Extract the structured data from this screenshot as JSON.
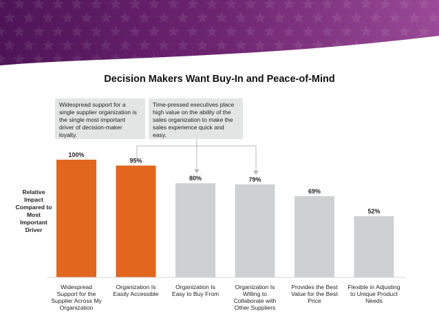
{
  "title": "Decision Makers Want Buy-In and Peace-of-Mind",
  "callouts": [
    "Widespread support for a single supplier organization is the single most important driver of decision-maker loyalty.",
    "Time-pressed executives place high value on the ability of the sales organization to make the sales experience quick and easy."
  ],
  "y_axis_label": "Relative Impact Compared to Most Important Driver",
  "colors": {
    "highlight": "#e2661e",
    "neutral": "#cfd0d1",
    "banner_dark": "#58185f",
    "banner_light": "#8c3b8c"
  },
  "chart_data": {
    "type": "bar",
    "categories": [
      "Widespread Support for the Supplier Across My Organization",
      "Organization Is Easily Accessible",
      "Organization Is Easy to Buy From",
      "Organization Is Willing to Collaborate with Other Suppliers",
      "Provides the Best Value for the Best Price",
      "Flexible in Adjusting to Unique Product Needs"
    ],
    "values": [
      100,
      95,
      80,
      79,
      69,
      52
    ],
    "value_labels": [
      "100%",
      "95%",
      "80%",
      "79%",
      "69%",
      "52%"
    ],
    "highlighted": [
      true,
      true,
      false,
      false,
      false,
      false
    ],
    "title": "Decision Makers Want Buy-In and Peace-of-Mind",
    "ylabel": "Relative Impact Compared to Most Important Driver",
    "ylim": [
      0,
      100
    ],
    "grid": false
  }
}
